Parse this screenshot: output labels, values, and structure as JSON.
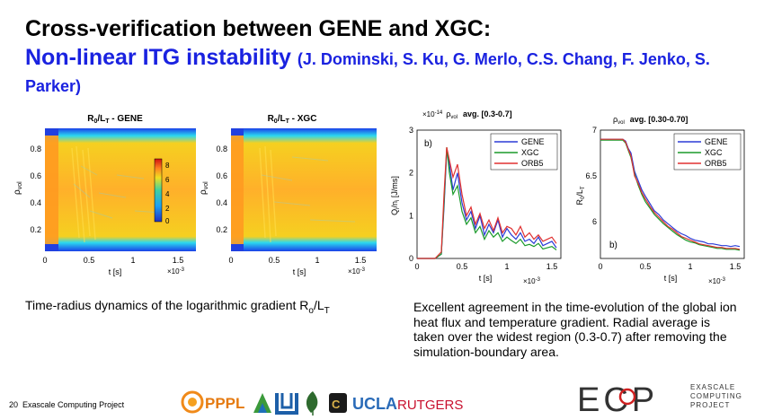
{
  "slide": {
    "title_line1": "Cross-verification between GENE and XGC:",
    "title_line2": "Non-linear ITG instability",
    "authors": "(J. Dominski, S. Ku, G. Merlo, C.S. Chang, F. Jenko, S. Parker)",
    "caption_left": "Time-radius dynamics of the logarithmic gradient R",
    "caption_left_sub1": "o",
    "caption_left_mid": "/L",
    "caption_left_sub2": "T",
    "caption_right": "Excellent agreement in the time-evolution of the global ion heat flux and temperature gradient. Radial average is taken over the widest region (0.3-0.7) after removing the simulation-boundary area.",
    "footer_page": "20",
    "footer_text": "Exascale Computing Project"
  },
  "logos": {
    "pppl": "PPPL",
    "ucla": "UCLA",
    "rutgers": "RUTGERS",
    "ecp_letters": "ECP",
    "ecp_line1": "EXASCALE",
    "ecp_line2": "COMPUTING",
    "ecp_line3": "PROJECT"
  },
  "heatmaps": [
    {
      "title_main": "R",
      "title_sub0": "0",
      "title_mid": "/L",
      "title_sub1": "T",
      "title_tail": " - GENE",
      "ylabel": "ρ",
      "ylabel_sub": "vol",
      "xlabel": "t [s]",
      "xexp": "×10",
      "xexp_pow": "-3",
      "yticks": [
        "0.8",
        "0.6",
        "0.4",
        "0.2"
      ],
      "xticks": [
        "0",
        "0.5",
        "1",
        "1.5"
      ],
      "colorbar_ticks": [
        "8",
        "6",
        "4",
        "2",
        "0"
      ]
    },
    {
      "title_main": "R",
      "title_sub0": "0",
      "title_mid": "/L",
      "title_sub1": "T",
      "title_tail": " - XGC",
      "ylabel": "ρ",
      "ylabel_sub": "vol",
      "xlabel": "t [s]",
      "xexp": "×10",
      "xexp_pow": "-3",
      "yticks": [
        "0.8",
        "0.6",
        "0.4",
        "0.2"
      ],
      "xticks": [
        "0",
        "0.5",
        "1",
        "1.5"
      ]
    }
  ],
  "chart_data": [
    {
      "type": "line",
      "title_pre": "×10",
      "title_pow": "-14",
      "title_rho": "ρ",
      "title_vol": "vol",
      "title": "avg. [0.3-0.7]",
      "panel": "b)",
      "ylabel": "Q",
      "ylabel_sub": "i",
      "ylabel_mid": "/n",
      "ylabel_sub2": "i",
      "ylabel_unit": " [J/ms]",
      "xlabel": "t [s]",
      "xexp": "×10",
      "xexp_pow": "-3",
      "xlim": [
        0,
        1.6
      ],
      "ylim": [
        0,
        3
      ],
      "xticks": [
        "0",
        "0.5",
        "1",
        "1.5"
      ],
      "yticks": [
        "0",
        "1",
        "2",
        "3"
      ],
      "legend_position": "top-right",
      "series": [
        {
          "name": "GENE",
          "color": "#2b3bd6",
          "x": [
            0,
            0.2,
            0.27,
            0.3,
            0.33,
            0.36,
            0.4,
            0.45,
            0.5,
            0.55,
            0.6,
            0.65,
            0.7,
            0.75,
            0.8,
            0.85,
            0.9,
            0.95,
            1.0,
            1.05,
            1.1,
            1.15,
            1.2,
            1.25,
            1.3,
            1.35,
            1.4,
            1.45,
            1.5,
            1.55
          ],
          "y": [
            0,
            0,
            0.1,
            1.2,
            2.5,
            2.2,
            1.6,
            2.0,
            1.3,
            0.9,
            1.1,
            0.7,
            1.0,
            0.55,
            0.8,
            0.6,
            0.9,
            0.5,
            0.7,
            0.55,
            0.45,
            0.6,
            0.4,
            0.45,
            0.35,
            0.5,
            0.3,
            0.35,
            0.4,
            0.25
          ]
        },
        {
          "name": "XGC",
          "color": "#1a9a2a",
          "x": [
            0,
            0.2,
            0.27,
            0.3,
            0.33,
            0.36,
            0.4,
            0.45,
            0.5,
            0.55,
            0.6,
            0.65,
            0.7,
            0.75,
            0.8,
            0.85,
            0.9,
            0.95,
            1.0,
            1.05,
            1.1,
            1.15,
            1.2,
            1.25,
            1.3,
            1.35,
            1.4,
            1.45,
            1.5,
            1.55
          ],
          "y": [
            0,
            0,
            0.1,
            1.3,
            2.6,
            2.0,
            1.5,
            1.7,
            1.1,
            0.8,
            0.95,
            0.6,
            0.75,
            0.45,
            0.65,
            0.5,
            0.6,
            0.4,
            0.5,
            0.42,
            0.35,
            0.45,
            0.3,
            0.33,
            0.28,
            0.35,
            0.22,
            0.25,
            0.28,
            0.2
          ]
        },
        {
          "name": "ORB5",
          "color": "#e03030",
          "x": [
            0,
            0.2,
            0.27,
            0.3,
            0.33,
            0.36,
            0.4,
            0.45,
            0.5,
            0.55,
            0.6,
            0.65,
            0.7,
            0.75,
            0.8,
            0.85,
            0.9,
            0.95,
            1.0,
            1.05,
            1.1,
            1.15,
            1.2,
            1.25,
            1.3,
            1.35,
            1.4,
            1.45,
            1.5,
            1.55
          ],
          "y": [
            0,
            0,
            0.15,
            1.5,
            2.6,
            2.3,
            1.9,
            2.2,
            1.5,
            1.0,
            1.2,
            0.8,
            1.05,
            0.7,
            0.9,
            0.65,
            0.95,
            0.6,
            0.75,
            0.7,
            0.55,
            0.75,
            0.5,
            0.6,
            0.45,
            0.55,
            0.4,
            0.45,
            0.5,
            0.35
          ]
        }
      ]
    },
    {
      "type": "line",
      "title_rho": "ρ",
      "title_vol": "vol",
      "title": "avg. [0.30-0.70]",
      "panel": "b)",
      "ylabel": "R",
      "ylabel_sub": "0",
      "ylabel_mid": "/L",
      "ylabel_sub2": "T",
      "ylabel_unit": "",
      "xlabel": "t [s]",
      "xexp": "×10",
      "xexp_pow": "-3",
      "xlim": [
        0,
        1.6
      ],
      "ylim": [
        5.6,
        7.0
      ],
      "xticks": [
        "0",
        "0.5",
        "1",
        "1.5"
      ],
      "yticks": [
        "7",
        "6.5",
        "6"
      ],
      "ytick_values": [
        7,
        6.5,
        6
      ],
      "legend_position": "top-right",
      "series": [
        {
          "name": "GENE",
          "color": "#2b3bd6",
          "x": [
            0,
            0.25,
            0.28,
            0.31,
            0.34,
            0.38,
            0.42,
            0.46,
            0.5,
            0.55,
            0.6,
            0.65,
            0.7,
            0.75,
            0.8,
            0.85,
            0.9,
            0.95,
            1.0,
            1.05,
            1.1,
            1.15,
            1.2,
            1.25,
            1.3,
            1.35,
            1.4,
            1.45,
            1.5,
            1.55
          ],
          "y": [
            6.9,
            6.9,
            6.88,
            6.8,
            6.75,
            6.55,
            6.45,
            6.35,
            6.28,
            6.2,
            6.12,
            6.08,
            6.02,
            5.98,
            5.94,
            5.9,
            5.87,
            5.85,
            5.82,
            5.8,
            5.79,
            5.78,
            5.76,
            5.76,
            5.75,
            5.74,
            5.74,
            5.73,
            5.74,
            5.73
          ]
        },
        {
          "name": "XGC",
          "color": "#1a9a2a",
          "x": [
            0,
            0.25,
            0.28,
            0.31,
            0.34,
            0.38,
            0.42,
            0.46,
            0.5,
            0.55,
            0.6,
            0.65,
            0.7,
            0.75,
            0.8,
            0.85,
            0.9,
            0.95,
            1.0,
            1.05,
            1.1,
            1.15,
            1.2,
            1.25,
            1.3,
            1.35,
            1.4,
            1.45,
            1.5,
            1.55
          ],
          "y": [
            6.89,
            6.89,
            6.86,
            6.78,
            6.7,
            6.52,
            6.4,
            6.3,
            6.22,
            6.15,
            6.08,
            6.03,
            5.98,
            5.94,
            5.9,
            5.86,
            5.83,
            5.8,
            5.78,
            5.77,
            5.75,
            5.74,
            5.73,
            5.72,
            5.71,
            5.71,
            5.7,
            5.7,
            5.7,
            5.69
          ]
        },
        {
          "name": "ORB5",
          "color": "#e03030",
          "x": [
            0,
            0.25,
            0.28,
            0.31,
            0.34,
            0.38,
            0.42,
            0.46,
            0.5,
            0.55,
            0.6,
            0.65,
            0.7,
            0.75,
            0.8,
            0.85,
            0.9,
            0.95,
            1.0,
            1.05,
            1.1,
            1.15,
            1.2,
            1.25,
            1.3,
            1.35,
            1.4,
            1.45,
            1.5,
            1.55
          ],
          "y": [
            6.9,
            6.9,
            6.87,
            6.79,
            6.72,
            6.5,
            6.42,
            6.32,
            6.25,
            6.17,
            6.1,
            6.05,
            6.0,
            5.95,
            5.92,
            5.88,
            5.84,
            5.82,
            5.8,
            5.78,
            5.76,
            5.75,
            5.74,
            5.73,
            5.72,
            5.72,
            5.71,
            5.71,
            5.71,
            5.7
          ]
        }
      ]
    }
  ]
}
